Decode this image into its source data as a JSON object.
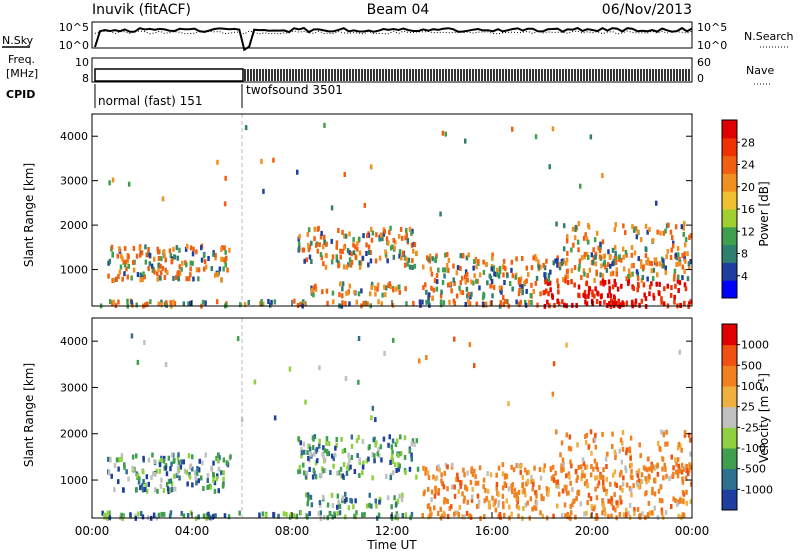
{
  "header": {
    "station": "Inuvik (fitACF)",
    "beam": "Beam 04",
    "date": "06/Nov/2013"
  },
  "summary_panels": {
    "nsky_label": "N.Sky",
    "nsky_ticks": [
      "10^5",
      "10^0"
    ],
    "nsearch_label": "N.Search",
    "nsearch_ticks": [
      "10^5",
      "10^0"
    ],
    "freq_label_1": "Freq.",
    "freq_label_2": "[MHz]",
    "freq_ticks": [
      "10",
      "8"
    ],
    "nave_label": "Nave",
    "nave_ticks": [
      "60",
      "0"
    ],
    "cpid_label": "CPID",
    "cpid_segments": [
      "normal (fast) 151",
      "twofsound 3501"
    ]
  },
  "chart_data": [
    {
      "type": "heatmap",
      "name": "power",
      "ylabel": "Slant Range [km]",
      "xlabel": "",
      "x_range_hours": [
        0,
        24
      ],
      "ylim": [
        180,
        4500
      ],
      "y_ticks": [
        "1000",
        "2000",
        "3000",
        "4000"
      ],
      "colorbar": {
        "label": "Power [dB]",
        "ticks": [
          "4",
          "8",
          "12",
          "16",
          "20",
          "24",
          "28"
        ],
        "colors": [
          "#0000ff",
          "#1f3fa0",
          "#2f7f6f",
          "#3f9f4f",
          "#9fd030",
          "#f0c030",
          "#f09020",
          "#f06010",
          "#f03000",
          "#e00000"
        ]
      }
    },
    {
      "type": "heatmap",
      "name": "velocity",
      "ylabel": "Slant Range [km]",
      "xlabel": "Time UT",
      "x_range_hours": [
        0,
        24
      ],
      "ylim": [
        180,
        4500
      ],
      "x_ticks": [
        "00:00",
        "04:00",
        "08:00",
        "12:00",
        "16:00",
        "20:00",
        "00:00"
      ],
      "y_ticks": [
        "1000",
        "2000",
        "3000",
        "4000"
      ],
      "colorbar": {
        "label": "Velocity [m s",
        "label_sup": "-1",
        "ticks": [
          "1000",
          "500",
          "100",
          "25",
          "-25",
          "-100",
          "-500",
          "-1000"
        ],
        "colors": [
          "#1f3fa0",
          "#2f6f8f",
          "#3f9f4f",
          "#8fd040",
          "#c0c0c0",
          "#f0b040",
          "#f08020",
          "#f05010",
          "#e00000"
        ]
      }
    }
  ]
}
